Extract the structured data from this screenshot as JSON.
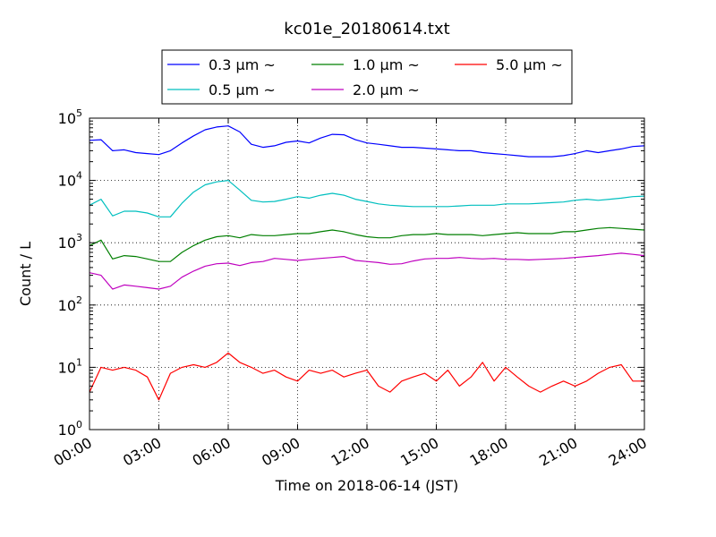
{
  "chart_data": {
    "type": "line",
    "title": "kc01e_20180614.txt",
    "xlabel": "Time on 2018-06-14 (JST)",
    "ylabel": "Count / L",
    "yscale": "log",
    "xlim": [
      "00:00",
      "24:00"
    ],
    "ylim": [
      1,
      100000
    ],
    "grid": true,
    "legend_position": "top",
    "x_ticks": [
      "00:00",
      "03:00",
      "06:00",
      "09:00",
      "12:00",
      "15:00",
      "18:00",
      "21:00",
      "24:00"
    ],
    "y_ticks": [
      {
        "value": 1,
        "base": "10",
        "exp": "0"
      },
      {
        "value": 10,
        "base": "10",
        "exp": "1"
      },
      {
        "value": 100,
        "base": "10",
        "exp": "2"
      },
      {
        "value": 1000,
        "base": "10",
        "exp": "3"
      },
      {
        "value": 10000,
        "base": "10",
        "exp": "4"
      },
      {
        "value": 100000,
        "base": "10",
        "exp": "5"
      }
    ],
    "x": [
      "00:00",
      "00:30",
      "01:00",
      "01:30",
      "02:00",
      "02:30",
      "03:00",
      "03:30",
      "04:00",
      "04:30",
      "05:00",
      "05:30",
      "06:00",
      "06:30",
      "07:00",
      "07:30",
      "08:00",
      "08:30",
      "09:00",
      "09:30",
      "10:00",
      "10:30",
      "11:00",
      "11:30",
      "12:00",
      "12:30",
      "13:00",
      "13:30",
      "14:00",
      "14:30",
      "15:00",
      "15:30",
      "16:00",
      "16:30",
      "17:00",
      "17:30",
      "18:00",
      "18:30",
      "19:00",
      "19:30",
      "20:00",
      "20:30",
      "21:00",
      "21:30",
      "22:00",
      "22:30",
      "23:00",
      "23:30",
      "24:00"
    ],
    "series": [
      {
        "name": "0.3 μm ~",
        "color": "#0000ff",
        "values": [
          44000,
          45000,
          30000,
          31000,
          28000,
          27000,
          26000,
          30000,
          40000,
          52000,
          65000,
          72000,
          75000,
          60000,
          38000,
          34000,
          36000,
          41000,
          43000,
          40000,
          48000,
          55000,
          54000,
          45000,
          40000,
          38000,
          36000,
          34000,
          34000,
          33000,
          32000,
          31000,
          30000,
          30000,
          28000,
          27000,
          26000,
          25000,
          24000,
          24000,
          24000,
          25000,
          27000,
          30000,
          28000,
          30000,
          32000,
          35000,
          36000
        ]
      },
      {
        "name": "0.5 μm ~",
        "color": "#00bfbf",
        "values": [
          4000,
          5000,
          2700,
          3200,
          3200,
          3000,
          2600,
          2600,
          4300,
          6500,
          8500,
          9500,
          10000,
          7000,
          4800,
          4500,
          4600,
          5000,
          5500,
          5200,
          5800,
          6200,
          5800,
          5000,
          4600,
          4200,
          4000,
          3900,
          3800,
          3800,
          3800,
          3800,
          3900,
          4000,
          4000,
          4000,
          4200,
          4200,
          4200,
          4300,
          4400,
          4500,
          4800,
          5000,
          4800,
          5000,
          5200,
          5500,
          5600
        ]
      },
      {
        "name": "1.0 μm ~",
        "color": "#007f00",
        "values": [
          900,
          1100,
          550,
          620,
          600,
          550,
          500,
          500,
          700,
          900,
          1100,
          1250,
          1300,
          1200,
          1350,
          1300,
          1300,
          1350,
          1400,
          1400,
          1500,
          1600,
          1500,
          1350,
          1250,
          1200,
          1200,
          1300,
          1350,
          1350,
          1400,
          1350,
          1350,
          1350,
          1300,
          1350,
          1400,
          1450,
          1400,
          1400,
          1400,
          1500,
          1500,
          1600,
          1700,
          1750,
          1700,
          1650,
          1600
        ]
      },
      {
        "name": "2.0 μm ~",
        "color": "#bf00bf",
        "values": [
          330,
          300,
          180,
          210,
          200,
          190,
          180,
          200,
          280,
          350,
          420,
          460,
          470,
          430,
          480,
          500,
          560,
          540,
          520,
          540,
          560,
          580,
          600,
          520,
          500,
          480,
          450,
          460,
          510,
          550,
          560,
          560,
          580,
          560,
          550,
          560,
          540,
          540,
          530,
          540,
          550,
          560,
          580,
          600,
          620,
          650,
          680,
          650,
          620
        ]
      },
      {
        "name": "5.0 μm ~",
        "color": "#ff0000",
        "values": [
          4,
          10,
          9,
          10,
          9,
          7,
          3,
          8,
          10,
          11,
          10,
          12,
          17,
          12,
          10,
          8,
          9,
          7,
          6,
          9,
          8,
          9,
          7,
          8,
          9,
          5,
          4,
          6,
          7,
          8,
          6,
          9,
          5,
          7,
          12,
          6,
          10,
          7,
          5,
          4,
          5,
          6,
          5,
          6,
          8,
          10,
          11,
          6,
          6
        ]
      }
    ]
  }
}
